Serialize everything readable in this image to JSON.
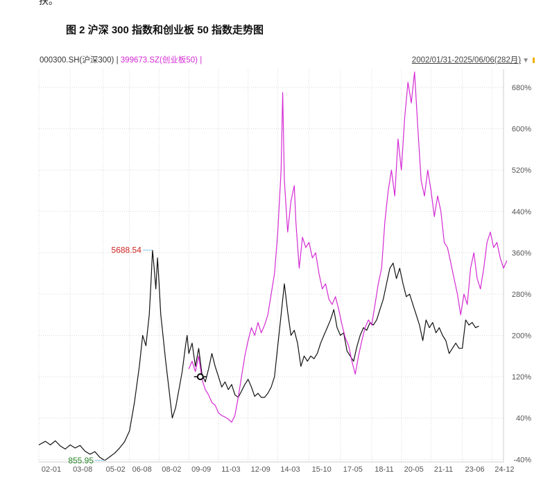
{
  "page": {
    "top_fragment": "扶。",
    "figure_title": "图 2  沪深 300 指数和创业板 50 指数走势图"
  },
  "chart_header": {
    "series1_label": "000300.SH(沪深300) |",
    "series2_label": "399673.SZ(创业板50) |",
    "range_text": "2002/01/31-2025/06/06(282月)",
    "range_arrow": "▼"
  },
  "chart_data": {
    "type": "line",
    "y_ticks": [
      "680%",
      "600%",
      "520%",
      "440%",
      "360%",
      "280%",
      "200%",
      "120%",
      "40%",
      "-40%"
    ],
    "y_tick_values": [
      680,
      600,
      520,
      440,
      360,
      280,
      200,
      120,
      40,
      -40
    ],
    "ylim": [
      -45,
      715
    ],
    "x_ticks": [
      "02-01",
      "03-08",
      "05-02",
      "06-08",
      "08-02",
      "09-09",
      "11-03",
      "12-09",
      "14-03",
      "15-10",
      "17-05",
      "18-11",
      "20-05",
      "21-11",
      "23-06",
      "24-12"
    ],
    "x_tick_months": [
      0,
      19,
      39,
      55,
      73,
      91,
      109,
      127,
      145,
      164,
      183,
      202,
      220,
      238,
      257,
      275
    ],
    "xlim": [
      0,
      282
    ],
    "annotations": [
      {
        "label": "5688.54",
        "month": 69,
        "value": 365,
        "color": "#cc2222"
      },
      {
        "label": "855.95",
        "month": 40,
        "value": -42,
        "color": "#2a8a2a"
      }
    ],
    "series": [
      {
        "color": "#111111",
        "points": [
          [
            0,
            -12
          ],
          [
            4,
            -5
          ],
          [
            7,
            -12
          ],
          [
            10,
            -4
          ],
          [
            13,
            -14
          ],
          [
            16,
            -20
          ],
          [
            19,
            -12
          ],
          [
            22,
            -18
          ],
          [
            25,
            -13
          ],
          [
            28,
            -24
          ],
          [
            31,
            -30
          ],
          [
            34,
            -25
          ],
          [
            37,
            -36
          ],
          [
            40,
            -42
          ],
          [
            43,
            -35
          ],
          [
            46,
            -28
          ],
          [
            49,
            -18
          ],
          [
            52,
            -6
          ],
          [
            55,
            15
          ],
          [
            58,
            70
          ],
          [
            61,
            140
          ],
          [
            63,
            200
          ],
          [
            65,
            180
          ],
          [
            67,
            240
          ],
          [
            68,
            300
          ],
          [
            69,
            365
          ],
          [
            70,
            330
          ],
          [
            71,
            290
          ],
          [
            72,
            350
          ],
          [
            73,
            300
          ],
          [
            74,
            240
          ],
          [
            75,
            210
          ],
          [
            77,
            150
          ],
          [
            79,
            95
          ],
          [
            81,
            40
          ],
          [
            83,
            60
          ],
          [
            85,
            95
          ],
          [
            87,
            130
          ],
          [
            89,
            180
          ],
          [
            90,
            200
          ],
          [
            91,
            165
          ],
          [
            93,
            185
          ],
          [
            95,
            140
          ],
          [
            97,
            175
          ],
          [
            99,
            125
          ],
          [
            101,
            110
          ],
          [
            103,
            135
          ],
          [
            105,
            165
          ],
          [
            107,
            140
          ],
          [
            109,
            120
          ],
          [
            111,
            100
          ],
          [
            113,
            110
          ],
          [
            115,
            95
          ],
          [
            117,
            105
          ],
          [
            119,
            85
          ],
          [
            121,
            80
          ],
          [
            123,
            92
          ],
          [
            125,
            105
          ],
          [
            127,
            115
          ],
          [
            129,
            100
          ],
          [
            131,
            82
          ],
          [
            133,
            88
          ],
          [
            135,
            80
          ],
          [
            137,
            80
          ],
          [
            139,
            88
          ],
          [
            141,
            100
          ],
          [
            143,
            120
          ],
          [
            145,
            180
          ],
          [
            147,
            240
          ],
          [
            149,
            300
          ],
          [
            151,
            245
          ],
          [
            153,
            200
          ],
          [
            155,
            210
          ],
          [
            157,
            185
          ],
          [
            159,
            140
          ],
          [
            161,
            160
          ],
          [
            163,
            150
          ],
          [
            165,
            160
          ],
          [
            167,
            155
          ],
          [
            169,
            165
          ],
          [
            171,
            185
          ],
          [
            173,
            200
          ],
          [
            175,
            215
          ],
          [
            177,
            230
          ],
          [
            179,
            250
          ],
          [
            181,
            215
          ],
          [
            183,
            200
          ],
          [
            185,
            205
          ],
          [
            187,
            170
          ],
          [
            189,
            160
          ],
          [
            191,
            150
          ],
          [
            193,
            178
          ],
          [
            195,
            200
          ],
          [
            197,
            215
          ],
          [
            199,
            210
          ],
          [
            201,
            225
          ],
          [
            203,
            220
          ],
          [
            205,
            230
          ],
          [
            207,
            250
          ],
          [
            209,
            270
          ],
          [
            211,
            300
          ],
          [
            213,
            330
          ],
          [
            215,
            340
          ],
          [
            217,
            310
          ],
          [
            219,
            330
          ],
          [
            221,
            300
          ],
          [
            223,
            275
          ],
          [
            225,
            280
          ],
          [
            227,
            260
          ],
          [
            229,
            240
          ],
          [
            231,
            220
          ],
          [
            233,
            190
          ],
          [
            235,
            230
          ],
          [
            237,
            215
          ],
          [
            239,
            225
          ],
          [
            241,
            205
          ],
          [
            243,
            215
          ],
          [
            245,
            200
          ],
          [
            247,
            190
          ],
          [
            249,
            165
          ],
          [
            251,
            175
          ],
          [
            253,
            185
          ],
          [
            255,
            175
          ],
          [
            257,
            175
          ],
          [
            259,
            230
          ],
          [
            261,
            220
          ],
          [
            263,
            225
          ],
          [
            265,
            215
          ],
          [
            267,
            218
          ]
        ]
      },
      {
        "color": "#d42ad4",
        "points": [
          [
            91,
            135
          ],
          [
            93,
            150
          ],
          [
            95,
            130
          ],
          [
            97,
            160
          ],
          [
            99,
            115
          ],
          [
            101,
            95
          ],
          [
            103,
            85
          ],
          [
            105,
            70
          ],
          [
            107,
            65
          ],
          [
            109,
            50
          ],
          [
            111,
            45
          ],
          [
            113,
            42
          ],
          [
            115,
            38
          ],
          [
            117,
            32
          ],
          [
            119,
            45
          ],
          [
            121,
            80
          ],
          [
            123,
            120
          ],
          [
            125,
            160
          ],
          [
            127,
            190
          ],
          [
            129,
            215
          ],
          [
            131,
            200
          ],
          [
            133,
            225
          ],
          [
            135,
            205
          ],
          [
            137,
            220
          ],
          [
            139,
            240
          ],
          [
            141,
            280
          ],
          [
            143,
            320
          ],
          [
            145,
            400
          ],
          [
            147,
            520
          ],
          [
            148,
            670
          ],
          [
            149,
            500
          ],
          [
            151,
            400
          ],
          [
            153,
            460
          ],
          [
            155,
            490
          ],
          [
            156,
            420
          ],
          [
            158,
            330
          ],
          [
            160,
            390
          ],
          [
            162,
            370
          ],
          [
            164,
            380
          ],
          [
            166,
            350
          ],
          [
            168,
            360
          ],
          [
            170,
            320
          ],
          [
            172,
            290
          ],
          [
            174,
            300
          ],
          [
            176,
            270
          ],
          [
            178,
            260
          ],
          [
            180,
            275
          ],
          [
            182,
            250
          ],
          [
            184,
            220
          ],
          [
            186,
            195
          ],
          [
            188,
            180
          ],
          [
            190,
            150
          ],
          [
            192,
            125
          ],
          [
            194,
            160
          ],
          [
            196,
            190
          ],
          [
            198,
            215
          ],
          [
            200,
            230
          ],
          [
            202,
            220
          ],
          [
            204,
            260
          ],
          [
            206,
            300
          ],
          [
            208,
            330
          ],
          [
            210,
            420
          ],
          [
            212,
            480
          ],
          [
            214,
            520
          ],
          [
            216,
            470
          ],
          [
            218,
            580
          ],
          [
            220,
            520
          ],
          [
            222,
            620
          ],
          [
            224,
            690
          ],
          [
            226,
            650
          ],
          [
            228,
            710
          ],
          [
            230,
            600
          ],
          [
            232,
            500
          ],
          [
            234,
            470
          ],
          [
            236,
            520
          ],
          [
            238,
            480
          ],
          [
            240,
            430
          ],
          [
            242,
            470
          ],
          [
            244,
            440
          ],
          [
            246,
            380
          ],
          [
            248,
            370
          ],
          [
            250,
            340
          ],
          [
            252,
            310
          ],
          [
            254,
            280
          ],
          [
            256,
            240
          ],
          [
            258,
            280
          ],
          [
            260,
            260
          ],
          [
            262,
            330
          ],
          [
            264,
            360
          ],
          [
            266,
            310
          ],
          [
            268,
            290
          ],
          [
            270,
            330
          ],
          [
            272,
            380
          ],
          [
            274,
            400
          ],
          [
            276,
            370
          ],
          [
            278,
            380
          ],
          [
            280,
            350
          ],
          [
            282,
            330
          ],
          [
            284,
            345
          ]
        ]
      }
    ]
  }
}
